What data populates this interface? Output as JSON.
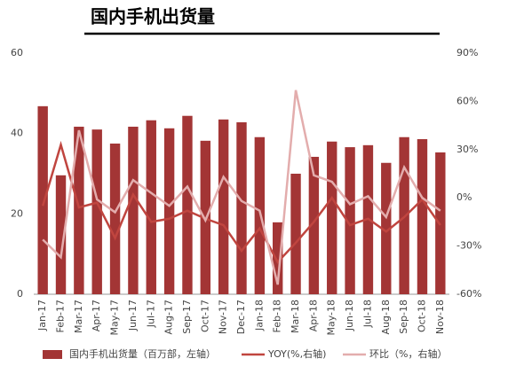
{
  "chart_data": {
    "type": "bar",
    "title": "国内手机出货量",
    "categories": [
      "Jan-17",
      "Feb-17",
      "Mar-17",
      "Apr-17",
      "May-17",
      "Jun-17",
      "Jul-17",
      "Aug-17",
      "Sep-17",
      "Oct-17",
      "Nov-17",
      "Dec-17",
      "Jan-18",
      "Feb-18",
      "Mar-18",
      "Apr-18",
      "May-18",
      "Jun-18",
      "Jul-18",
      "Aug-18",
      "Sep-18",
      "Oct-18",
      "Nov-18"
    ],
    "series": [
      {
        "name": "国内手机出货量（百万部，左轴）",
        "type": "bar",
        "axis": "y",
        "color": "#a33535",
        "values": [
          46.8,
          29.6,
          41.7,
          41.0,
          37.5,
          41.7,
          43.3,
          41.3,
          44.4,
          38.2,
          43.5,
          42.8,
          39.1,
          17.9,
          30.0,
          34.2,
          38.0,
          36.6,
          37.1,
          32.7,
          39.1,
          38.6,
          35.3
        ]
      },
      {
        "name": "YOY(%,右轴)",
        "type": "line",
        "axis": "y2",
        "color": "#c0453f",
        "values": [
          -5,
          33,
          -6,
          -3,
          -25,
          2,
          -15,
          -13,
          -8,
          -13,
          -17,
          -33,
          -19,
          -40,
          -28,
          -15,
          0,
          -17,
          -13,
          -21,
          -12,
          -1,
          -17
        ]
      },
      {
        "name": "环比（%，右轴）",
        "type": "line",
        "axis": "y2",
        "color": "#e3adad",
        "values": [
          -26,
          -37,
          42,
          -1,
          -9,
          11,
          3,
          -5,
          7,
          -14,
          13,
          -2,
          -8,
          -54,
          67,
          14,
          10,
          -4,
          1,
          -12,
          19,
          0,
          -8
        ]
      }
    ],
    "ylim": [
      0,
      60
    ],
    "yticks": [
      0,
      20,
      40,
      60
    ],
    "y2lim": [
      -60,
      90
    ],
    "y2ticks": [
      {
        "value": -60,
        "label": "-60%"
      },
      {
        "value": -30,
        "label": "-30%"
      },
      {
        "value": 0,
        "label": "0%"
      },
      {
        "value": 30,
        "label": "30%"
      },
      {
        "value": 60,
        "label": "60%"
      },
      {
        "value": 90,
        "label": "90%"
      }
    ],
    "grid": false,
    "legend": "bottom"
  }
}
